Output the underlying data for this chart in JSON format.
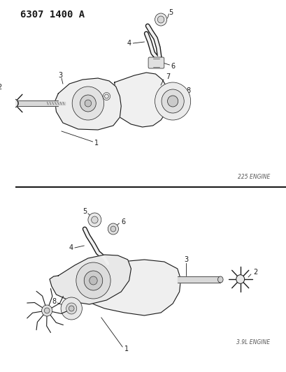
{
  "title": "6307 1400 A",
  "bg_color": "#ffffff",
  "lc": "#1a1a1a",
  "engine1_label": "225 ENGINE",
  "engine2_label": "3.9L ENGINE",
  "title_fontsize": 10,
  "label_fontsize": 6,
  "number_fontsize": 7
}
